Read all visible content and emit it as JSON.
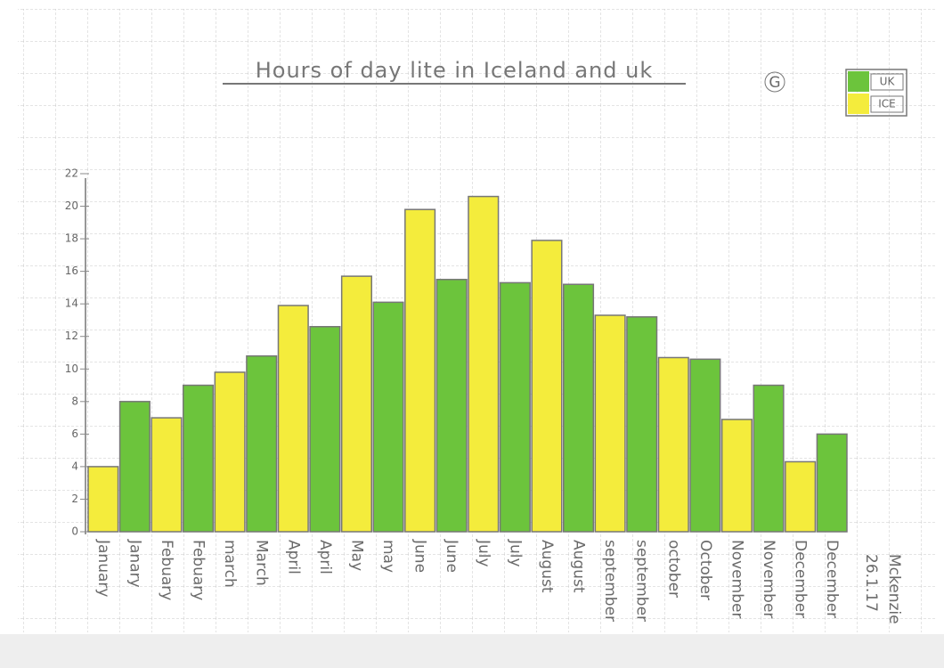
{
  "chart_data": {
    "type": "bar",
    "title": "Hours of day lite in Iceland and uk",
    "grade": "G",
    "categories": [
      "January",
      "Janary",
      "Febuary",
      "Febuary",
      "march",
      "March",
      "April",
      "April",
      "May",
      "may",
      "June",
      "June",
      "July",
      "July",
      "August",
      "August",
      "september",
      "september",
      "october",
      "October",
      "November",
      "November",
      "December",
      "December"
    ],
    "values": [
      4,
      8,
      7,
      9,
      9.8,
      10.8,
      13.9,
      12.6,
      15.7,
      14.1,
      19.8,
      15.5,
      20.6,
      15.3,
      17.9,
      15.2,
      13.3,
      13.2,
      10.7,
      10.6,
      6.9,
      9,
      4.3,
      6
    ],
    "colors": [
      "#f4ec3c",
      "#6cc43c",
      "#f4ec3c",
      "#6cc43c",
      "#f4ec3c",
      "#6cc43c",
      "#f4ec3c",
      "#6cc43c",
      "#f4ec3c",
      "#6cc43c",
      "#f4ec3c",
      "#6cc43c",
      "#f4ec3c",
      "#6cc43c",
      "#f4ec3c",
      "#6cc43c",
      "#f4ec3c",
      "#6cc43c",
      "#f4ec3c",
      "#6cc43c",
      "#f4ec3c",
      "#6cc43c",
      "#f4ec3c",
      "#6cc43c"
    ],
    "legend": [
      {
        "name": "UK",
        "color": "#6cc43c"
      },
      {
        "name": "ICE",
        "color": "#f4ec3c"
      }
    ],
    "ylim": [
      0,
      22
    ],
    "yticks": [
      0,
      2,
      4,
      6,
      8,
      10,
      12,
      14,
      16,
      18,
      20,
      22
    ],
    "annotations": [
      "26.1.17",
      "Mckenzie"
    ]
  }
}
